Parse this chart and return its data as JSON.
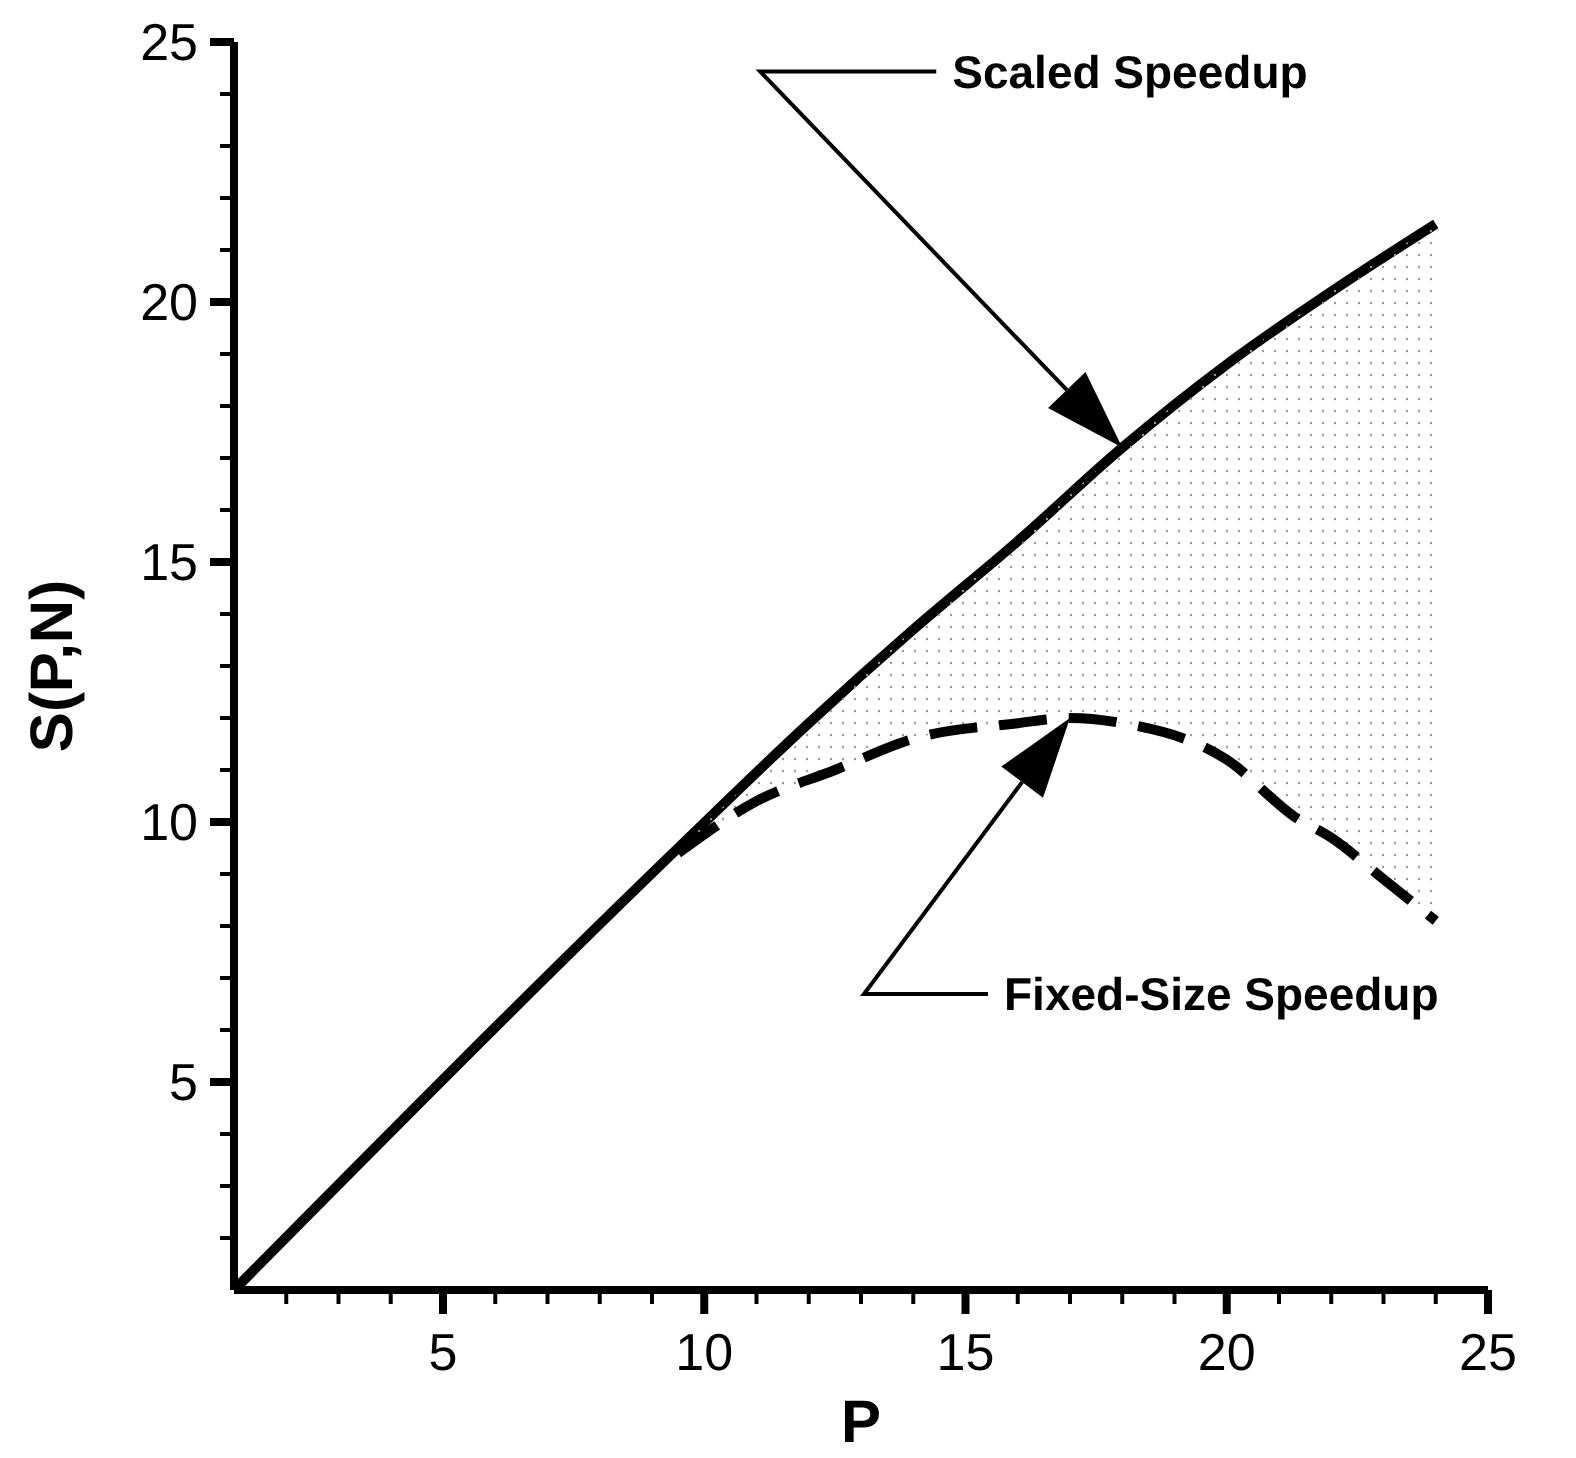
{
  "chart_data": {
    "type": "line",
    "xlabel": "P",
    "ylabel": "S(P,N)",
    "xlim": [
      1,
      25
    ],
    "ylim": [
      1,
      25
    ],
    "xticks": [
      {
        "value": 2,
        "label": null
      },
      {
        "value": 3,
        "label": null
      },
      {
        "value": 4,
        "label": null
      },
      5,
      {
        "value": 6,
        "label": null
      },
      {
        "value": 7,
        "label": null
      },
      {
        "value": 8,
        "label": null
      },
      {
        "value": 9,
        "label": null
      },
      10,
      {
        "value": 11,
        "label": null
      },
      {
        "value": 12,
        "label": null
      },
      {
        "value": 13,
        "label": null
      },
      {
        "value": 14,
        "label": null
      },
      15,
      {
        "value": 16,
        "label": null
      },
      {
        "value": 17,
        "label": null
      },
      {
        "value": 18,
        "label": null
      },
      {
        "value": 19,
        "label": null
      },
      20,
      {
        "value": 21,
        "label": null
      },
      {
        "value": 22,
        "label": null
      },
      {
        "value": 23,
        "label": null
      },
      {
        "value": 24,
        "label": null
      },
      25
    ],
    "yticks": [
      {
        "value": 2,
        "label": null
      },
      {
        "value": 3,
        "label": null
      },
      {
        "value": 4,
        "label": null
      },
      5,
      {
        "value": 6,
        "label": null
      },
      {
        "value": 7,
        "label": null
      },
      {
        "value": 8,
        "label": null
      },
      {
        "value": 9,
        "label": null
      },
      10,
      {
        "value": 11,
        "label": null
      },
      {
        "value": 12,
        "label": null
      },
      {
        "value": 13,
        "label": null
      },
      {
        "value": 14,
        "label": null
      },
      15,
      {
        "value": 16,
        "label": null
      },
      {
        "value": 17,
        "label": null
      },
      {
        "value": 18,
        "label": null
      },
      {
        "value": 19,
        "label": null
      },
      20,
      {
        "value": 21,
        "label": null
      },
      {
        "value": 22,
        "label": null
      },
      {
        "value": 23,
        "label": null
      },
      {
        "value": 24,
        "label": null
      },
      25
    ],
    "grid": false,
    "legend": false,
    "marker": "none",
    "series": [
      {
        "name": "Scaled Speedup",
        "color": "#000000",
        "line_style": "solid",
        "x": [
          1,
          9.5,
          12,
          14,
          16,
          18,
          20,
          22,
          24
        ],
        "values": [
          1,
          9.5,
          11.9,
          13.7,
          15.4,
          17.2,
          18.8,
          20.2,
          21.5
        ]
      },
      {
        "name": "Fixed-Size Speedup",
        "color": "#000000",
        "line_style": "dashed",
        "x": [
          9.5,
          11,
          12.5,
          14,
          16,
          17,
          18,
          20,
          21.3,
          22,
          23,
          24
        ],
        "values": [
          9.4,
          10.4,
          11,
          11.6,
          11.9,
          12,
          11.9,
          11.2,
          10.1,
          9.7,
          8.9,
          8.1
        ],
        "lower": [
          9.4,
          10.4,
          11,
          11.6,
          11.9,
          12,
          11.9,
          11.2,
          10.1,
          9.7,
          8.9,
          8.1
        ],
        "upper": [
          9.5,
          10.9,
          12.35,
          13.7,
          15.4,
          16.3,
          17.2,
          18.8,
          19.7,
          20.2,
          20.85,
          21.5
        ]
      }
    ]
  }
}
